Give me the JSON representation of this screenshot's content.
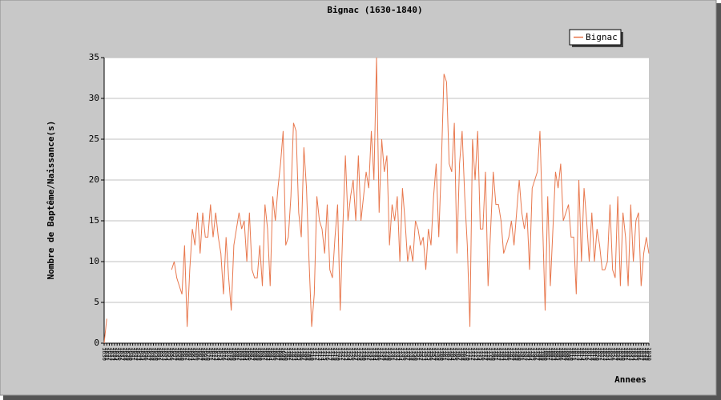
{
  "chart_data": {
    "type": "line",
    "title": "Bignac (1630-1840)",
    "x_label": "Annees",
    "y_label": "Nombre de Baptême/Naissance(s)",
    "x": [
      1630,
      1631,
      1632,
      1633,
      1634,
      1635,
      1636,
      1637,
      1638,
      1639,
      1640,
      1641,
      1642,
      1643,
      1644,
      1645,
      1646,
      1647,
      1648,
      1649,
      1650,
      1651,
      1652,
      1653,
      1654,
      1655,
      1656,
      1657,
      1658,
      1659,
      1660,
      1661,
      1662,
      1663,
      1664,
      1665,
      1666,
      1667,
      1668,
      1669,
      1670,
      1671,
      1672,
      1673,
      1674,
      1675,
      1676,
      1677,
      1678,
      1679,
      1680,
      1681,
      1682,
      1683,
      1684,
      1685,
      1686,
      1687,
      1688,
      1689,
      1690,
      1691,
      1692,
      1693,
      1694,
      1695,
      1696,
      1697,
      1698,
      1699,
      1700,
      1701,
      1702,
      1703,
      1704,
      1705,
      1706,
      1707,
      1708,
      1709,
      1710,
      1711,
      1712,
      1713,
      1714,
      1715,
      1716,
      1717,
      1718,
      1719,
      1720,
      1721,
      1722,
      1723,
      1724,
      1725,
      1726,
      1727,
      1728,
      1729,
      1730,
      1731,
      1732,
      1733,
      1734,
      1735,
      1736,
      1737,
      1738,
      1739,
      1740,
      1741,
      1742,
      1743,
      1744,
      1745,
      1746,
      1747,
      1748,
      1749,
      1750,
      1751,
      1752,
      1753,
      1754,
      1755,
      1756,
      1757,
      1758,
      1759,
      1760,
      1761,
      1762,
      1763,
      1764,
      1765,
      1766,
      1767,
      1768,
      1769,
      1770,
      1771,
      1772,
      1773,
      1774,
      1775,
      1776,
      1777,
      1778,
      1779,
      1780,
      1781,
      1782,
      1783,
      1784,
      1785,
      1786,
      1787,
      1788,
      1789,
      1790,
      1791,
      1792,
      1793,
      1794,
      1795,
      1796,
      1797,
      1798,
      1799,
      1800,
      1801,
      1802,
      1803,
      1804,
      1805,
      1806,
      1807,
      1808,
      1809,
      1810,
      1811,
      1812,
      1813,
      1814,
      1815,
      1816,
      1817,
      1818,
      1819,
      1820,
      1821,
      1822,
      1823,
      1824,
      1825,
      1826,
      1827,
      1828,
      1829,
      1830,
      1831,
      1832,
      1833,
      1834,
      1835,
      1836,
      1837,
      1838,
      1839,
      1840
    ],
    "series": [
      {
        "name": "Bignac",
        "color": "#e8784e",
        "values": [
          0,
          3,
          null,
          null,
          null,
          null,
          null,
          null,
          null,
          null,
          null,
          null,
          null,
          null,
          null,
          null,
          null,
          null,
          null,
          null,
          null,
          null,
          null,
          null,
          null,
          null,
          9,
          10,
          8,
          7,
          6,
          12,
          2,
          9,
          14,
          12,
          16,
          11,
          16,
          13,
          13,
          17,
          13,
          16,
          13,
          11,
          6,
          13,
          8,
          4,
          12,
          14,
          16,
          14,
          15,
          10,
          16,
          9,
          8,
          8,
          12,
          7,
          17,
          14,
          7,
          18,
          15,
          19,
          22,
          26,
          12,
          13,
          18,
          27,
          26,
          16,
          13,
          24,
          19,
          10,
          2,
          6,
          18,
          15,
          14,
          11,
          17,
          9,
          8,
          13,
          17,
          4,
          14,
          23,
          15,
          18,
          20,
          15,
          23,
          15,
          18,
          21,
          19,
          26,
          20,
          35,
          16,
          25,
          21,
          23,
          12,
          17,
          15,
          18,
          10,
          19,
          15,
          10,
          12,
          10,
          15,
          14,
          12,
          13,
          9,
          14,
          12,
          18,
          22,
          13,
          22,
          33,
          32,
          22,
          21,
          27,
          11,
          22,
          26,
          18,
          12,
          2,
          25,
          20,
          26,
          14,
          14,
          21,
          7,
          14,
          21,
          17,
          17,
          15,
          11,
          12,
          13,
          15,
          12,
          16,
          20,
          16,
          14,
          16,
          9,
          19,
          20,
          21,
          26,
          15,
          4,
          18,
          7,
          14,
          21,
          19,
          22,
          15,
          16,
          17,
          13,
          13,
          6,
          20,
          10,
          19,
          15,
          10,
          16,
          10,
          14,
          12,
          9,
          9,
          10,
          17,
          9,
          8,
          18,
          7,
          16,
          13,
          7,
          17,
          10,
          15,
          16,
          7,
          11,
          13,
          11
        ]
      }
    ],
    "xlim": [
      1630,
      1840
    ],
    "ylim": [
      0,
      35
    ],
    "yticks": [
      0,
      5,
      10,
      15,
      20,
      25,
      30,
      35
    ],
    "grid": true,
    "legend": "top-right"
  }
}
